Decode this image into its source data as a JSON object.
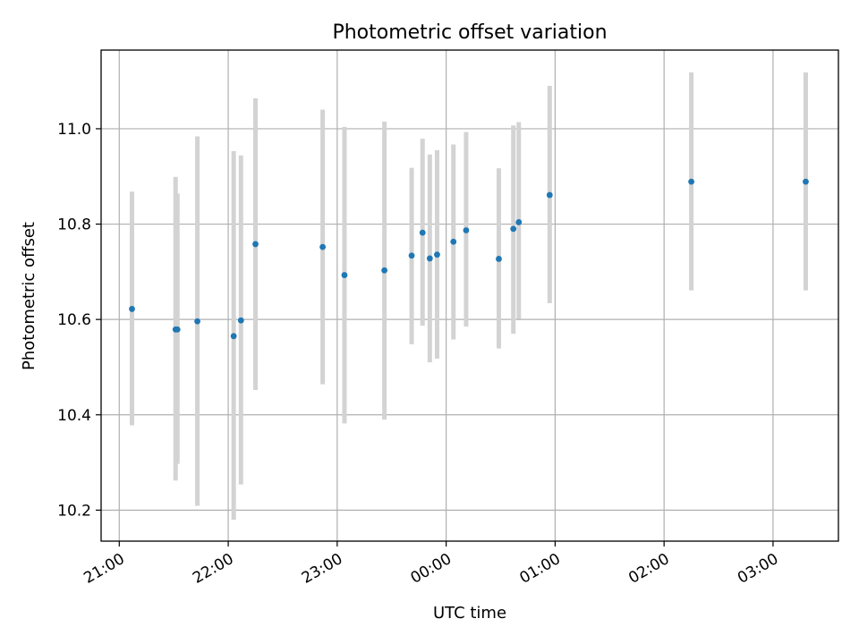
{
  "chart_data": {
    "type": "scatter",
    "title": "Photometric offset variation",
    "xlabel": "UTC time",
    "ylabel": "Photometric offset",
    "x_axis_kind": "time",
    "xlim": [
      "20:50",
      "03:36"
    ],
    "ylim": [
      10.135,
      11.165
    ],
    "grid": true,
    "x_ticks": [
      "21:00",
      "22:00",
      "23:00",
      "00:00",
      "01:00",
      "02:00",
      "03:00"
    ],
    "y_ticks": [
      "10.2",
      "10.4",
      "10.6",
      "10.8",
      "11.0"
    ],
    "colors": {
      "point": "#1f77b4",
      "errorbar": "#d3d3d3",
      "grid": "#b0b0b0"
    },
    "points": [
      {
        "x": "21:07",
        "y": 10.622,
        "err_low": 10.378,
        "err_high": 10.868
      },
      {
        "x": "21:31",
        "y": 10.579,
        "err_low": 10.262,
        "err_high": 10.899
      },
      {
        "x": "21:32",
        "y": 10.579,
        "err_low": 10.297,
        "err_high": 10.864
      },
      {
        "x": "21:43",
        "y": 10.596,
        "err_low": 10.209,
        "err_high": 10.984
      },
      {
        "x": "22:03",
        "y": 10.565,
        "err_low": 10.18,
        "err_high": 10.953
      },
      {
        "x": "22:07",
        "y": 10.598,
        "err_low": 10.254,
        "err_high": 10.944
      },
      {
        "x": "22:15",
        "y": 10.758,
        "err_low": 10.452,
        "err_high": 11.064
      },
      {
        "x": "22:52",
        "y": 10.752,
        "err_low": 10.464,
        "err_high": 11.04
      },
      {
        "x": "23:04",
        "y": 10.693,
        "err_low": 10.382,
        "err_high": 11.004
      },
      {
        "x": "23:26",
        "y": 10.703,
        "err_low": 10.39,
        "err_high": 11.015
      },
      {
        "x": "23:41",
        "y": 10.734,
        "err_low": 10.548,
        "err_high": 10.918
      },
      {
        "x": "23:47",
        "y": 10.782,
        "err_low": 10.587,
        "err_high": 10.979
      },
      {
        "x": "23:51",
        "y": 10.728,
        "err_low": 10.51,
        "err_high": 10.946
      },
      {
        "x": "23:55",
        "y": 10.736,
        "err_low": 10.518,
        "err_high": 10.955
      },
      {
        "x": "00:04",
        "y": 10.763,
        "err_low": 10.558,
        "err_high": 10.967
      },
      {
        "x": "00:11",
        "y": 10.787,
        "err_low": 10.585,
        "err_high": 10.993
      },
      {
        "x": "00:29",
        "y": 10.727,
        "err_low": 10.539,
        "err_high": 10.917
      },
      {
        "x": "00:37",
        "y": 10.79,
        "err_low": 10.57,
        "err_high": 11.007
      },
      {
        "x": "00:40",
        "y": 10.804,
        "err_low": 10.601,
        "err_high": 11.014
      },
      {
        "x": "00:57",
        "y": 10.861,
        "err_low": 10.634,
        "err_high": 11.09
      },
      {
        "x": "02:15",
        "y": 10.889,
        "err_low": 10.661,
        "err_high": 11.118
      },
      {
        "x": "03:18",
        "y": 10.889,
        "err_low": 10.661,
        "err_high": 11.118
      }
    ]
  }
}
